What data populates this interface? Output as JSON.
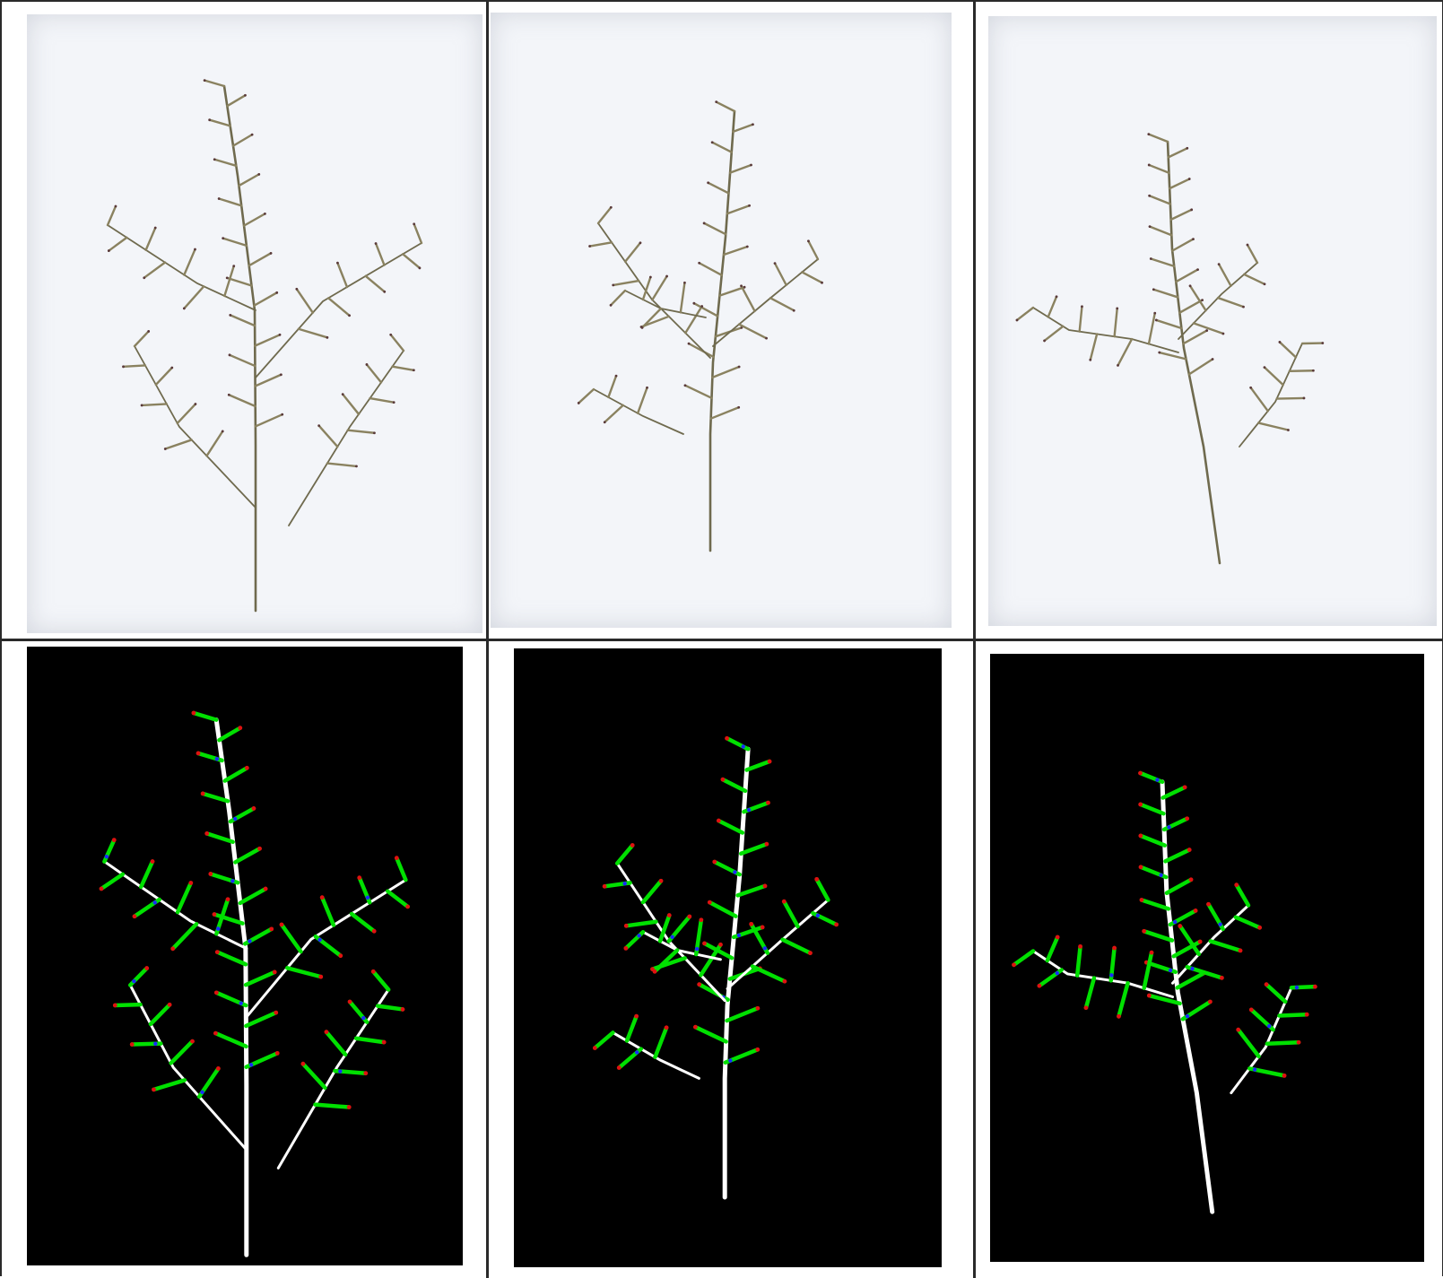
{
  "figure": {
    "rows": [
      {
        "kind": "scan",
        "description_colors": {
          "stem": "#6f6a4e",
          "pod": "#8a8260",
          "tip": "#5a3a3a"
        }
      },
      {
        "kind": "segmentation",
        "colors": {
          "background": "#000000",
          "stem": "#ffffff",
          "pod": "#00e000",
          "tip": "#e01010",
          "node": "#1a2aff"
        }
      }
    ],
    "columns": 3
  }
}
